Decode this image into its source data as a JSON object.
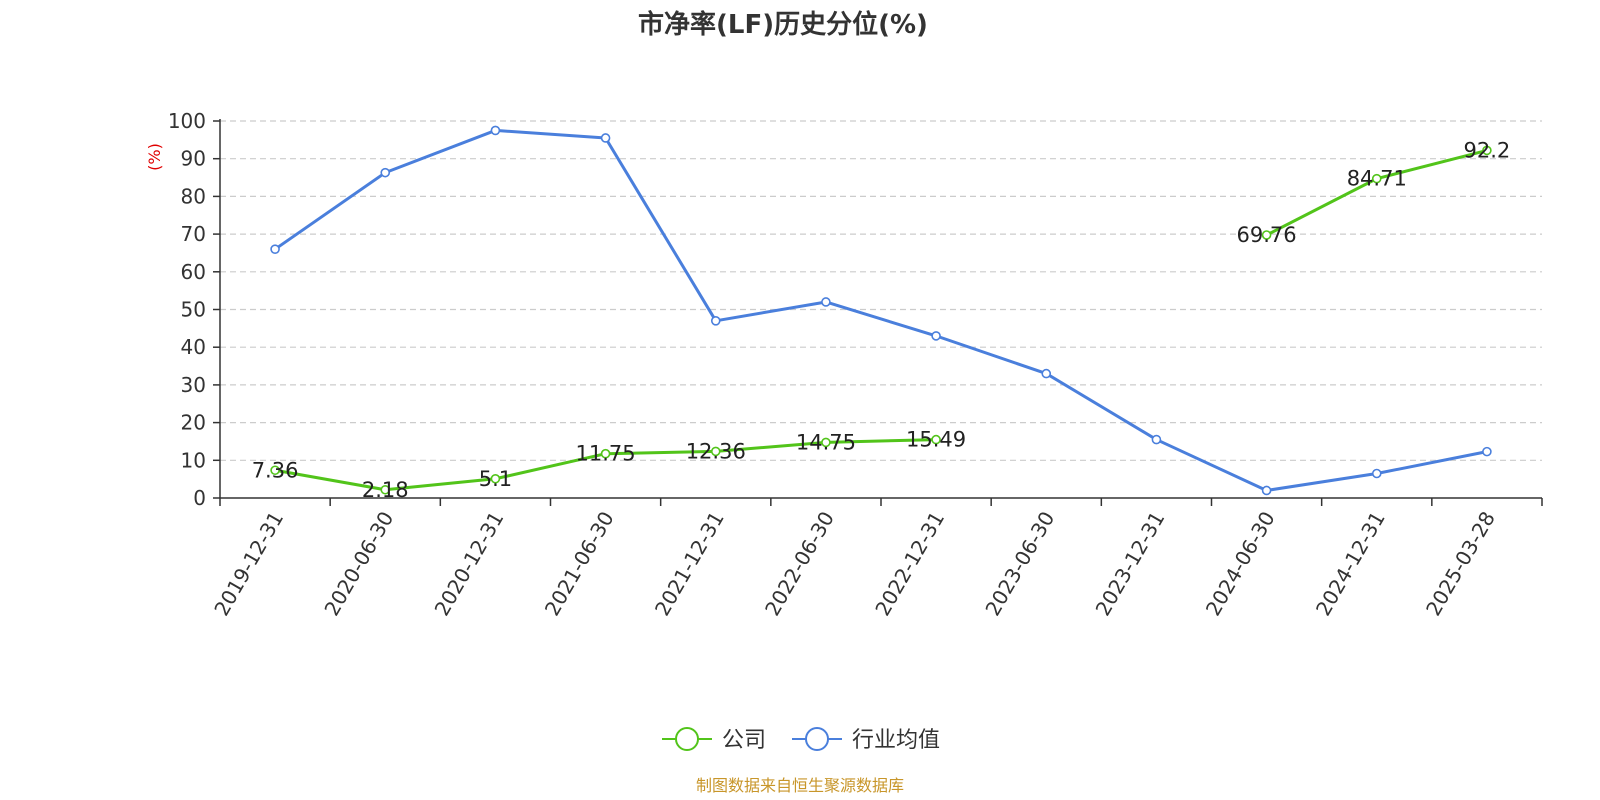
{
  "chart_data": {
    "type": "line",
    "title": "市净率(LF)历史分位(%)",
    "ylabel": "(%)",
    "ylim": [
      0,
      100
    ],
    "yticks": [
      0,
      10,
      20,
      30,
      40,
      50,
      60,
      70,
      80,
      90,
      100
    ],
    "grid": true,
    "categories": [
      "2019-12-31",
      "2020-06-30",
      "2020-12-31",
      "2021-06-30",
      "2021-12-31",
      "2022-06-30",
      "2022-12-31",
      "2023-06-30",
      "2023-12-31",
      "2024-06-30",
      "2024-12-31",
      "2025-03-28"
    ],
    "series": [
      {
        "name": "公司",
        "color": "#52c41a",
        "values": [
          7.36,
          2.18,
          5.1,
          11.75,
          12.36,
          14.75,
          15.49,
          null,
          null,
          69.76,
          84.71,
          92.2
        ],
        "show_labels": true
      },
      {
        "name": "行业均值",
        "color": "#4a7fdc",
        "values": [
          66,
          86.3,
          97.5,
          95.5,
          47,
          52,
          43,
          33,
          15.5,
          2,
          6.5,
          12.3
        ],
        "show_labels": false
      }
    ],
    "legend_position": "bottom-center",
    "source": "制图数据来自恒生聚源数据库",
    "colors": {
      "axis": "#333333",
      "grid": "#cccccc",
      "unit": "#e00000",
      "source": "#c8962a"
    }
  }
}
